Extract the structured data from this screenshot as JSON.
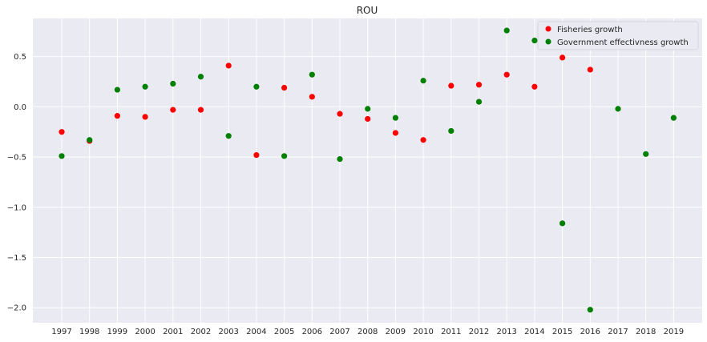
{
  "chart_data": {
    "type": "scatter",
    "title": "ROU",
    "xlabel": "",
    "ylabel": "",
    "x_categories": [
      "1997",
      "1998",
      "1999",
      "2000",
      "2001",
      "2002",
      "2003",
      "2004",
      "2005",
      "2006",
      "2007",
      "2008",
      "2009",
      "2010",
      "2011",
      "2012",
      "2013",
      "2014",
      "2015",
      "2016",
      "2017",
      "2018",
      "2019"
    ],
    "ylim": [
      -2.15,
      0.88
    ],
    "yticks": [
      -2.0,
      -1.5,
      -1.0,
      -0.5,
      0.0,
      0.5
    ],
    "ytick_labels": [
      "−2.0",
      "−1.5",
      "−1.0",
      "−0.5",
      "0.0",
      "0.5"
    ],
    "grid": true,
    "legend_position": "top-right",
    "series": [
      {
        "name": "Fisheries growth",
        "color": "#ff0000",
        "points": [
          {
            "x": "1997",
            "y": -0.25
          },
          {
            "x": "1998",
            "y": -0.34
          },
          {
            "x": "1999",
            "y": -0.09
          },
          {
            "x": "2000",
            "y": -0.1
          },
          {
            "x": "2001",
            "y": -0.03
          },
          {
            "x": "2002",
            "y": -0.03
          },
          {
            "x": "2003",
            "y": 0.41
          },
          {
            "x": "2004",
            "y": -0.48
          },
          {
            "x": "2005",
            "y": 0.19
          },
          {
            "x": "2006",
            "y": 0.1
          },
          {
            "x": "2007",
            "y": -0.07
          },
          {
            "x": "2008",
            "y": -0.12
          },
          {
            "x": "2009",
            "y": -0.26
          },
          {
            "x": "2010",
            "y": -0.33
          },
          {
            "x": "2011",
            "y": 0.21
          },
          {
            "x": "2012",
            "y": 0.22
          },
          {
            "x": "2013",
            "y": 0.32
          },
          {
            "x": "2014",
            "y": 0.2
          },
          {
            "x": "2015",
            "y": 0.49
          },
          {
            "x": "2016",
            "y": 0.37
          }
        ]
      },
      {
        "name": "Government effectivness growth",
        "color": "#008000",
        "points": [
          {
            "x": "1997",
            "y": -0.49
          },
          {
            "x": "1998",
            "y": -0.33
          },
          {
            "x": "1999",
            "y": 0.17
          },
          {
            "x": "2000",
            "y": 0.2
          },
          {
            "x": "2001",
            "y": 0.23
          },
          {
            "x": "2002",
            "y": 0.3
          },
          {
            "x": "2003",
            "y": -0.29
          },
          {
            "x": "2004",
            "y": 0.2
          },
          {
            "x": "2005",
            "y": -0.49
          },
          {
            "x": "2006",
            "y": 0.32
          },
          {
            "x": "2007",
            "y": -0.52
          },
          {
            "x": "2008",
            "y": -0.02
          },
          {
            "x": "2009",
            "y": -0.11
          },
          {
            "x": "2010",
            "y": 0.26
          },
          {
            "x": "2011",
            "y": -0.24
          },
          {
            "x": "2012",
            "y": 0.05
          },
          {
            "x": "2013",
            "y": 0.76
          },
          {
            "x": "2014",
            "y": 0.66
          },
          {
            "x": "2015",
            "y": -1.16
          },
          {
            "x": "2016",
            "y": -2.02
          },
          {
            "x": "2017",
            "y": -0.02
          },
          {
            "x": "2018",
            "y": -0.47
          },
          {
            "x": "2019",
            "y": -0.11
          }
        ]
      }
    ]
  }
}
